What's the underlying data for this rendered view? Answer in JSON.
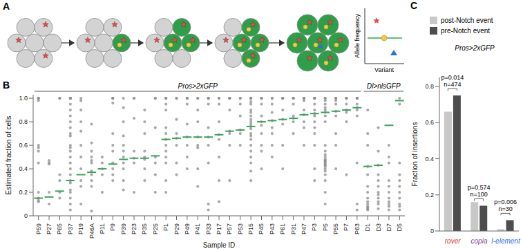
{
  "chart_data": [
    {
      "type": "diagram",
      "panel": "A",
      "y_label": "Allele frequency",
      "x_label": "Variant"
    },
    {
      "type": "scatter",
      "panel": "B",
      "categories": [
        "P59",
        "P27",
        "P65",
        "P37",
        "P19",
        "P46A",
        "P11",
        "P9",
        "P39",
        "P23",
        "P35",
        "P25",
        "P1",
        "P29",
        "P49",
        "P41",
        "P33",
        "P17",
        "P57",
        "P53",
        "P15",
        "P45",
        "P43",
        "P61",
        "P31",
        "P47",
        "P3",
        "P5",
        "P55",
        "P7",
        "P63",
        "D1",
        "D3",
        "D7",
        "D5"
      ],
      "groups": [
        {
          "label": "Pros>2xGFP",
          "from": "P59",
          "to": "P63"
        },
        {
          "label": "Dl>nlsGFP",
          "from": "D1",
          "to": "D5"
        }
      ],
      "values": [
        0.15,
        0.16,
        0.21,
        0.3,
        0.35,
        0.37,
        0.4,
        0.44,
        0.48,
        0.49,
        0.49,
        0.51,
        0.65,
        0.66,
        0.67,
        0.67,
        0.67,
        0.69,
        0.72,
        0.73,
        0.76,
        0.8,
        0.81,
        0.82,
        0.83,
        0.86,
        0.87,
        0.88,
        0.89,
        0.9,
        0.92,
        0.42,
        0.43,
        0.77,
        0.98
      ],
      "color": "#3aa35a",
      "points": [
        [
          1,
          1,
          1,
          0.98,
          0.6,
          0.58,
          0.55,
          0.45,
          0.2,
          0.15,
          0.13,
          0.12
        ],
        [
          0.47,
          0.45,
          0.44,
          0.2,
          0.1
        ],
        [
          1,
          1,
          0.35,
          0.3,
          0.2,
          0.15
        ],
        [
          1,
          1,
          1,
          1,
          0.95,
          0.9,
          0.85,
          0.8,
          0.75,
          0.7,
          0.68,
          0.6,
          0.58,
          0.55,
          0.5,
          0.45,
          0.4,
          0.35,
          0.3,
          0.28,
          0.22,
          0.2,
          0.15,
          0.1,
          0.05
        ],
        [
          1,
          0.98,
          0.9,
          0.8,
          0.72,
          0.6,
          0.5,
          0.4,
          0.3,
          0.25,
          0.1
        ],
        [
          0.78,
          0.62,
          0.55,
          0.5,
          0.47,
          0.45,
          0.38,
          0.35,
          0.3,
          0.25,
          0.04
        ],
        [
          0.5,
          0.45,
          0.4,
          0.35,
          0.2
        ],
        [
          1,
          1,
          1,
          0.96,
          0.7,
          0.6,
          0.55,
          0.45,
          0.4,
          0.35,
          0.3
        ],
        [
          1,
          0.92,
          0.8,
          0.68,
          0.6,
          0.55,
          0.5,
          0.45,
          0.4,
          0.3,
          0.22
        ],
        [
          1,
          1,
          0.83,
          0.55,
          0.49,
          0.45,
          0.2
        ],
        [
          0.9,
          0.8,
          0.7,
          0.55,
          0.5,
          0.48,
          0.4,
          0.3
        ],
        [
          1,
          1,
          0.75,
          0.5,
          0.45,
          0.35,
          0.2
        ],
        [
          1,
          1,
          1,
          0.95,
          0.9,
          0.75,
          0.7,
          0.65,
          0.6,
          0.55,
          0.5,
          0.45,
          0.3,
          0.2
        ],
        [
          1,
          1,
          0.82,
          0.7,
          0.66,
          0.6,
          0.45,
          0.35
        ],
        [
          1,
          1,
          1,
          0.95,
          0.78,
          0.67,
          0.6,
          0.5,
          0.4
        ],
        [
          1,
          1,
          0.9,
          0.8,
          0.67,
          0.6,
          0.58,
          0.4,
          0.25
        ],
        [
          1,
          1,
          1,
          0.95,
          0.75,
          0.67,
          0.6,
          0.45,
          0.1,
          0.05
        ],
        [
          1,
          1,
          0.95,
          0.8,
          0.69,
          0.65,
          0.5,
          0.3,
          0.12
        ],
        [
          1,
          1,
          1,
          0.9,
          0.72,
          0.7,
          0.6,
          0.3
        ],
        [
          1,
          1,
          0.95,
          0.85,
          0.73,
          0.7,
          0.6
        ],
        [
          1,
          1,
          1,
          1,
          0.97,
          0.95,
          0.9,
          0.88,
          0.85,
          0.82,
          0.8,
          0.78,
          0.76,
          0.74,
          0.7,
          0.68,
          0.65,
          0.6,
          0.55,
          0.5,
          0.45,
          0.38,
          0.3
        ],
        [
          1,
          1,
          1,
          0.95,
          0.85,
          0.8,
          0.77,
          0.7,
          0.6,
          0.55,
          0.4
        ],
        [
          1,
          1,
          0.95,
          0.88,
          0.81,
          0.75,
          0.7,
          0.6,
          0.5
        ],
        [
          1,
          1,
          1,
          0.9,
          0.82,
          0.78,
          0.6,
          0.4
        ],
        [
          1,
          1,
          1,
          0.95,
          0.85,
          0.83,
          0.8,
          0.7
        ],
        [
          1,
          1,
          1,
          0.98,
          0.9,
          0.86,
          0.8,
          0.75,
          0.6
        ],
        [
          1,
          1,
          1,
          1,
          0.95,
          0.9,
          0.87,
          0.85,
          0.8,
          0.75,
          0.7,
          0.6,
          0.4,
          0.3
        ],
        [
          1,
          1,
          0.98,
          0.95,
          0.92,
          0.9,
          0.88,
          0.85,
          0.8,
          0.6,
          0.55,
          0.52,
          0.5,
          0.48,
          0.47,
          0.46,
          0.45,
          0.44,
          0.43,
          0.42,
          0.4,
          0.38,
          0.35,
          0.3,
          0.2,
          0.1
        ],
        [
          1,
          1,
          1,
          0.98,
          0.95,
          0.89,
          0.85,
          0.7,
          0.6,
          0.4
        ],
        [
          1,
          1,
          1,
          0.95,
          0.9,
          0.88,
          0.8,
          0.35
        ],
        [
          1,
          1,
          1,
          1,
          0.95,
          0.92,
          0.9,
          0.85,
          0.45,
          0.1,
          0.05
        ],
        [
          0.9,
          0.7,
          0.6,
          0.42,
          0.35,
          0.25,
          0.2,
          0.15,
          0.12,
          0.1,
          0.08,
          0.07,
          0.06,
          0.05
        ],
        [
          0.75,
          0.55,
          0.43,
          0.35,
          0.3,
          0.25,
          0.2,
          0.18,
          0.15,
          0.12,
          0.1,
          0.06
        ],
        [
          0.6,
          0.5,
          0.45,
          0.3,
          0.25,
          0.2,
          0.15,
          0.12,
          0.1,
          0.08,
          0.05
        ],
        [
          1,
          0.95,
          0.45,
          0.35,
          0.3,
          0.25,
          0.2,
          0.15,
          0.1,
          0.08,
          0.05
        ]
      ],
      "points_color": "#8c8c8c",
      "ylim": [
        0,
        1.03
      ],
      "yticks": [
        0,
        0.2,
        0.4,
        0.6,
        0.8,
        {
          "value": 1,
          "label": "1.0"
        }
      ],
      "x_label": "Sample ID",
      "y_label": "Estimated fraction of cells"
    },
    {
      "type": "bar",
      "panel": "C",
      "title": "Pros>2xGFP",
      "categories": [
        "rover",
        "copia",
        "I-element"
      ],
      "series": [
        {
          "name": "post-Notch event",
          "color": "#c8c8c8",
          "values": [
            0.66,
            0.16,
            0.01
          ]
        },
        {
          "name": "pre-Notch event",
          "color": "#4d4d4d",
          "values": [
            0.75,
            0.14,
            0.06
          ]
        }
      ],
      "annotations": [
        {
          "category": "rover",
          "p": "p=0.014",
          "n": "n=474"
        },
        {
          "category": "copia",
          "p": "p=0.574",
          "n": "n=100"
        },
        {
          "category": "I-element",
          "p": "p=0.006",
          "n": "n=30"
        }
      ],
      "ylim": [
        0,
        0.85
      ],
      "yticks": [
        0,
        0.2,
        0.4,
        0.6,
        0.8
      ],
      "y_label": "Fraction of insertions",
      "legend": "top"
    }
  ]
}
